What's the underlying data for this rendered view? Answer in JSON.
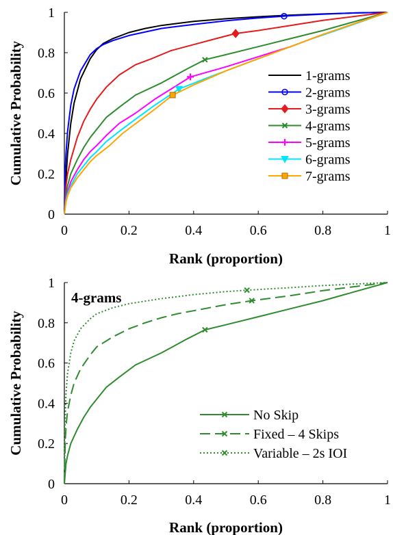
{
  "chart_data": [
    {
      "type": "line",
      "xlabel": "Rank (proportion)",
      "ylabel": "Cumulative Probability",
      "xlim": [
        0,
        1
      ],
      "ylim": [
        0,
        1
      ],
      "xticks": [
        "0",
        "0.2",
        "0.4",
        "0.6",
        "0.8",
        "1"
      ],
      "yticks": [
        "0",
        "0.2",
        "0.4",
        "0.6",
        "0.8",
        "1"
      ],
      "legend_position": "bottom-right",
      "series": [
        {
          "name": "1-grams",
          "color": "#000000",
          "marker": "none",
          "dash": "solid",
          "marker_x": null,
          "x": [
            0,
            0.005,
            0.01,
            0.02,
            0.03,
            0.05,
            0.08,
            0.1,
            0.12,
            0.15,
            0.2,
            0.25,
            0.3,
            0.4,
            0.5,
            0.6,
            0.7,
            0.8,
            0.9,
            1.0
          ],
          "y": [
            0,
            0.18,
            0.3,
            0.45,
            0.55,
            0.67,
            0.77,
            0.815,
            0.845,
            0.87,
            0.9,
            0.92,
            0.935,
            0.955,
            0.968,
            0.978,
            0.986,
            0.992,
            0.997,
            1.0
          ]
        },
        {
          "name": "2-grams",
          "color": "#0000ff",
          "marker": "circle",
          "dash": "solid",
          "marker_x": 0.68,
          "x": [
            0,
            0.002,
            0.005,
            0.01,
            0.02,
            0.03,
            0.05,
            0.08,
            0.1,
            0.12,
            0.15,
            0.2,
            0.3,
            0.4,
            0.5,
            0.6,
            0.7,
            0.8,
            0.9,
            1.0
          ],
          "y": [
            0,
            0.2,
            0.3,
            0.41,
            0.54,
            0.62,
            0.71,
            0.79,
            0.82,
            0.84,
            0.86,
            0.885,
            0.92,
            0.94,
            0.958,
            0.972,
            0.983,
            0.991,
            0.997,
            1.0
          ]
        },
        {
          "name": "3-grams",
          "color": "#e41a1c",
          "marker": "diamond",
          "dash": "solid",
          "marker_x": 0.53,
          "x": [
            0,
            0.005,
            0.01,
            0.02,
            0.04,
            0.06,
            0.08,
            0.1,
            0.13,
            0.17,
            0.22,
            0.27,
            0.33,
            0.4,
            0.47,
            0.53,
            0.6,
            0.7,
            0.8,
            0.9,
            1.0
          ],
          "y": [
            0,
            0.14,
            0.2,
            0.27,
            0.38,
            0.46,
            0.52,
            0.57,
            0.63,
            0.69,
            0.74,
            0.77,
            0.81,
            0.84,
            0.87,
            0.895,
            0.91,
            0.935,
            0.96,
            0.98,
            1.0
          ]
        },
        {
          "name": "4-grams",
          "color": "#2e8b2e",
          "marker": "x",
          "dash": "solid",
          "marker_x": 0.435,
          "x": [
            0,
            0.005,
            0.01,
            0.02,
            0.04,
            0.06,
            0.08,
            0.1,
            0.13,
            0.17,
            0.22,
            0.3,
            0.38,
            0.435,
            0.5,
            0.6,
            0.7,
            0.8,
            0.9,
            1.0
          ],
          "y": [
            0,
            0.1,
            0.14,
            0.2,
            0.27,
            0.33,
            0.38,
            0.42,
            0.48,
            0.53,
            0.59,
            0.65,
            0.72,
            0.765,
            0.79,
            0.83,
            0.87,
            0.91,
            0.955,
            1.0
          ]
        },
        {
          "name": "5-grams",
          "color": "#ff00ff",
          "marker": "plus",
          "dash": "solid",
          "marker_x": 0.39,
          "x": [
            0,
            0.005,
            0.01,
            0.02,
            0.04,
            0.06,
            0.08,
            0.1,
            0.13,
            0.17,
            0.22,
            0.28,
            0.34,
            0.39,
            0.5,
            0.6,
            0.7,
            0.8,
            0.9,
            1.0
          ],
          "y": [
            0,
            0.08,
            0.11,
            0.16,
            0.22,
            0.27,
            0.31,
            0.34,
            0.39,
            0.45,
            0.5,
            0.57,
            0.63,
            0.68,
            0.73,
            0.78,
            0.83,
            0.89,
            0.945,
            1.0
          ]
        },
        {
          "name": "6-grams",
          "color": "#00e5ff",
          "marker": "triangle-down",
          "dash": "solid",
          "marker_x": 0.355,
          "x": [
            0,
            0.005,
            0.01,
            0.02,
            0.04,
            0.06,
            0.08,
            0.1,
            0.13,
            0.17,
            0.22,
            0.28,
            0.355,
            0.45,
            0.55,
            0.65,
            0.75,
            0.85,
            0.93,
            1.0
          ],
          "y": [
            0,
            0.07,
            0.1,
            0.14,
            0.2,
            0.24,
            0.28,
            0.31,
            0.36,
            0.41,
            0.47,
            0.54,
            0.62,
            0.68,
            0.74,
            0.8,
            0.86,
            0.915,
            0.96,
            1.0
          ]
        },
        {
          "name": "7-grams",
          "color": "#ffa500",
          "marker": "square",
          "dash": "solid",
          "marker_x": 0.335,
          "x": [
            0,
            0.005,
            0.01,
            0.02,
            0.04,
            0.06,
            0.08,
            0.1,
            0.14,
            0.18,
            0.23,
            0.28,
            0.335,
            0.4,
            0.5,
            0.6,
            0.7,
            0.8,
            0.9,
            1.0
          ],
          "y": [
            0,
            0.06,
            0.09,
            0.13,
            0.18,
            0.22,
            0.26,
            0.29,
            0.34,
            0.4,
            0.46,
            0.52,
            0.59,
            0.64,
            0.71,
            0.77,
            0.83,
            0.89,
            0.945,
            1.0
          ]
        }
      ]
    },
    {
      "type": "line",
      "xlabel": "Rank (proportion)",
      "ylabel": "Cumulative Probability",
      "annotation": "4-grams",
      "xlim": [
        0,
        1
      ],
      "ylim": [
        0,
        1
      ],
      "xticks": [
        "0",
        "0.2",
        "0.4",
        "0.6",
        "0.8",
        "1"
      ],
      "yticks": [
        "0",
        "0.2",
        "0.4",
        "0.6",
        "0.8",
        "1"
      ],
      "legend_position": "bottom-right",
      "series": [
        {
          "name": "No Skip",
          "color": "#2e8b2e",
          "marker": "x",
          "dash": "solid",
          "marker_x": 0.435,
          "x": [
            0,
            0.005,
            0.01,
            0.02,
            0.04,
            0.06,
            0.08,
            0.1,
            0.13,
            0.17,
            0.22,
            0.3,
            0.38,
            0.435,
            0.5,
            0.6,
            0.7,
            0.8,
            0.9,
            1.0
          ],
          "y": [
            0,
            0.1,
            0.14,
            0.2,
            0.27,
            0.33,
            0.38,
            0.42,
            0.48,
            0.53,
            0.59,
            0.65,
            0.72,
            0.765,
            0.79,
            0.83,
            0.87,
            0.91,
            0.955,
            1.0
          ]
        },
        {
          "name": "Fixed – 4 Skips",
          "color": "#2e8b2e",
          "marker": "x",
          "dash": "dashed",
          "marker_x": 0.58,
          "x": [
            0,
            0.003,
            0.006,
            0.01,
            0.02,
            0.03,
            0.05,
            0.08,
            0.1,
            0.15,
            0.2,
            0.25,
            0.3,
            0.35,
            0.4,
            0.5,
            0.58,
            0.7,
            0.8,
            0.9,
            1.0
          ],
          "y": [
            0,
            0.22,
            0.3,
            0.36,
            0.44,
            0.5,
            0.57,
            0.64,
            0.68,
            0.73,
            0.77,
            0.8,
            0.825,
            0.845,
            0.86,
            0.89,
            0.91,
            0.935,
            0.96,
            0.98,
            1.0
          ]
        },
        {
          "name": "Variable – 2s IOI",
          "color": "#2e8b2e",
          "marker": "x",
          "dash": "dotted",
          "marker_x": 0.565,
          "x": [
            0,
            0.002,
            0.005,
            0.01,
            0.02,
            0.03,
            0.05,
            0.08,
            0.1,
            0.15,
            0.2,
            0.3,
            0.4,
            0.5,
            0.565,
            0.7,
            0.8,
            0.9,
            1.0
          ],
          "y": [
            0,
            0.3,
            0.45,
            0.55,
            0.65,
            0.71,
            0.77,
            0.82,
            0.845,
            0.875,
            0.895,
            0.92,
            0.94,
            0.955,
            0.962,
            0.975,
            0.985,
            0.993,
            1.0
          ]
        }
      ]
    }
  ]
}
